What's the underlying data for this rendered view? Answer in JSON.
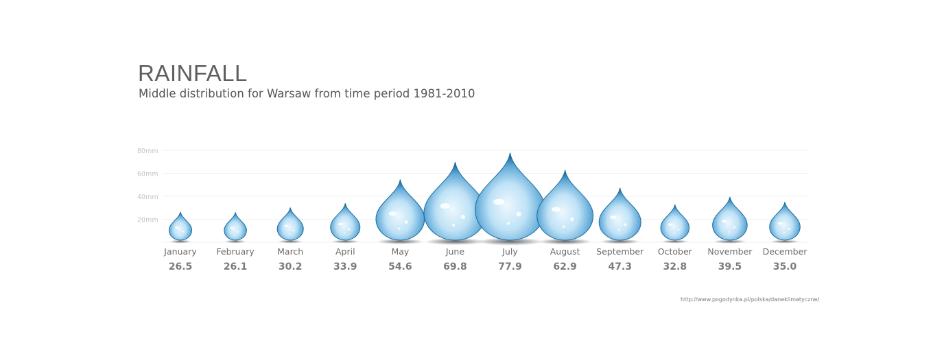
{
  "chart_data": {
    "type": "bar",
    "title": "RAINFALL",
    "subtitle": "Middle distribution for Warsaw from time period 1981-2010",
    "categories": [
      "January",
      "February",
      "March",
      "April",
      "May",
      "June",
      "July",
      "August",
      "September",
      "October",
      "November",
      "December"
    ],
    "values": [
      26.5,
      26.1,
      30.2,
      33.9,
      54.6,
      69.8,
      77.9,
      62.9,
      47.3,
      32.8,
      39.5,
      35.0
    ],
    "value_labels": [
      "26.5",
      "26.1",
      "30.2",
      "33.9",
      "54.6",
      "69.8",
      "77.9",
      "62.9",
      "47.3",
      "32.8",
      "39.5",
      "35.0"
    ],
    "yticks": [
      20,
      40,
      60,
      80
    ],
    "ytick_labels": [
      "20mm",
      "40mm",
      "60mm",
      "80mm"
    ],
    "ylim": [
      0,
      80
    ],
    "grid": true,
    "mark": "water-drop"
  },
  "source": "http://www.pogodynka.pl/polska/daneklimatyczne/",
  "colors": {
    "drop_dark": "#1f6c9c",
    "drop_mid": "#6fb6df",
    "drop_light": "#e4f4fd",
    "text": "#5e5e5e"
  }
}
